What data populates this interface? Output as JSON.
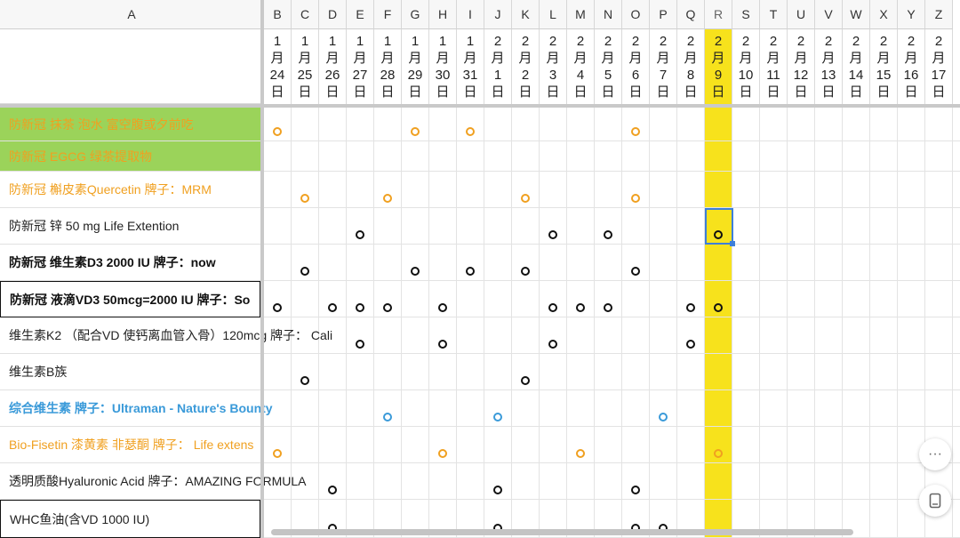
{
  "columns": {
    "a_header": "A",
    "letters": [
      "B",
      "C",
      "D",
      "E",
      "F",
      "G",
      "H",
      "I",
      "J",
      "K",
      "L",
      "M",
      "N",
      "O",
      "P",
      "Q",
      "R",
      "S",
      "T",
      "U",
      "V",
      "W",
      "X",
      "Y",
      "Z"
    ],
    "selected_letter": "R",
    "dates": [
      [
        "1",
        "月",
        "24",
        "日"
      ],
      [
        "1",
        "月",
        "25",
        "日"
      ],
      [
        "1",
        "月",
        "26",
        "日"
      ],
      [
        "1",
        "月",
        "27",
        "日"
      ],
      [
        "1",
        "月",
        "28",
        "日"
      ],
      [
        "1",
        "月",
        "29",
        "日"
      ],
      [
        "1",
        "月",
        "30",
        "日"
      ],
      [
        "1",
        "月",
        "31",
        "日"
      ],
      [
        "2",
        "月",
        "1",
        "日"
      ],
      [
        "2",
        "月",
        "2",
        "日"
      ],
      [
        "2",
        "月",
        "3",
        "日"
      ],
      [
        "2",
        "月",
        "4",
        "日"
      ],
      [
        "2",
        "月",
        "5",
        "日"
      ],
      [
        "2",
        "月",
        "6",
        "日"
      ],
      [
        "2",
        "月",
        "7",
        "日"
      ],
      [
        "2",
        "月",
        "8",
        "日"
      ],
      [
        "2",
        "月",
        "9",
        "日"
      ],
      [
        "2",
        "月",
        "10",
        "日"
      ],
      [
        "2",
        "月",
        "11",
        "日"
      ],
      [
        "2",
        "月",
        "12",
        "日"
      ],
      [
        "2",
        "月",
        "13",
        "日"
      ],
      [
        "2",
        "月",
        "14",
        "日"
      ],
      [
        "2",
        "月",
        "15",
        "日"
      ],
      [
        "2",
        "月",
        "16",
        "日"
      ],
      [
        "2",
        "月",
        "17",
        "日"
      ]
    ],
    "highlight_color": "#f7e21c"
  },
  "rows": [
    {
      "label": "防新冠 抹茶 泡水 富空腹或夕前吃",
      "color": "#f0a020",
      "fill": "green",
      "bold": false,
      "boxed": false,
      "marks": [
        "B",
        "G",
        "I",
        "O"
      ]
    },
    {
      "label": "防新冠 EGCG 绿茶提取物",
      "color": "#f0a020",
      "fill": "green",
      "bold": false,
      "boxed": false,
      "marks": []
    },
    {
      "label": "防新冠 槲皮素Quercetin 牌子：MRM",
      "color": "#f0a020",
      "fill": "none",
      "bold": false,
      "boxed": false,
      "marks": [
        "C",
        "F",
        "K",
        "O"
      ]
    },
    {
      "label": "防新冠 锌 50 mg Life Extention",
      "color": "#222222",
      "fill": "none",
      "bold": false,
      "boxed": false,
      "marks": [
        "E",
        "L",
        "N",
        "R"
      ]
    },
    {
      "label": "防新冠 维生素D3 2000 IU 牌子：now",
      "color": "#111111",
      "fill": "none",
      "bold": true,
      "boxed": false,
      "marks": [
        "C",
        "G",
        "I",
        "K",
        "O"
      ]
    },
    {
      "label": "防新冠 液滴VD3 50mcg=2000 IU 牌子：So",
      "color": "#111111",
      "fill": "none",
      "bold": true,
      "boxed": true,
      "marks": [
        "B",
        "D",
        "E",
        "F",
        "H",
        "L",
        "M",
        "N",
        "Q",
        "R"
      ]
    },
    {
      "label": "维生素K2 （配合VD 使钙离血管入骨）120mcg 牌子： Cali",
      "color": "#222222",
      "fill": "none",
      "bold": false,
      "boxed": false,
      "marks": [
        "E",
        "H",
        "L",
        "Q"
      ]
    },
    {
      "label": "维生素B族",
      "color": "#222222",
      "fill": "none",
      "bold": false,
      "boxed": false,
      "marks": [
        "C",
        "K"
      ]
    },
    {
      "label": "综合维生素 牌子：Ultraman - Nature's Bounty",
      "color": "#3a9ad9",
      "fill": "none",
      "bold": true,
      "boxed": false,
      "marks": [
        "F",
        "J",
        "P"
      ]
    },
    {
      "label": "Bio-Fisetin 漆黄素 非瑟酮 牌子： Life extens",
      "color": "#f0a020",
      "fill": "none",
      "bold": false,
      "boxed": false,
      "marks": [
        "B",
        "H",
        "M",
        "R"
      ]
    },
    {
      "label": "透明质酸Hyaluronic Acid 牌子：AMAZING FORMULA",
      "color": "#222222",
      "fill": "none",
      "bold": false,
      "boxed": false,
      "marks": [
        "D",
        "J",
        "O"
      ]
    },
    {
      "label": "WHC鱼油(含VD 1000 IU)",
      "color": "#222222",
      "fill": "none",
      "bold": false,
      "boxed": true,
      "marks": [
        "D",
        "J",
        "O",
        "P"
      ]
    }
  ],
  "mark_colors": {
    "#f0a020": "#f0a020",
    "#222222": "#111111",
    "#111111": "#111111",
    "#3a9ad9": "#3a9ad9"
  },
  "selected_cell": {
    "column": "R",
    "row": 4
  },
  "floating_buttons": [
    {
      "name": "more-options-button",
      "icon": "ellipsis-icon",
      "glyph": "···"
    },
    {
      "name": "tablet-view-button",
      "icon": "tablet-icon",
      "glyph": "▯"
    }
  ]
}
